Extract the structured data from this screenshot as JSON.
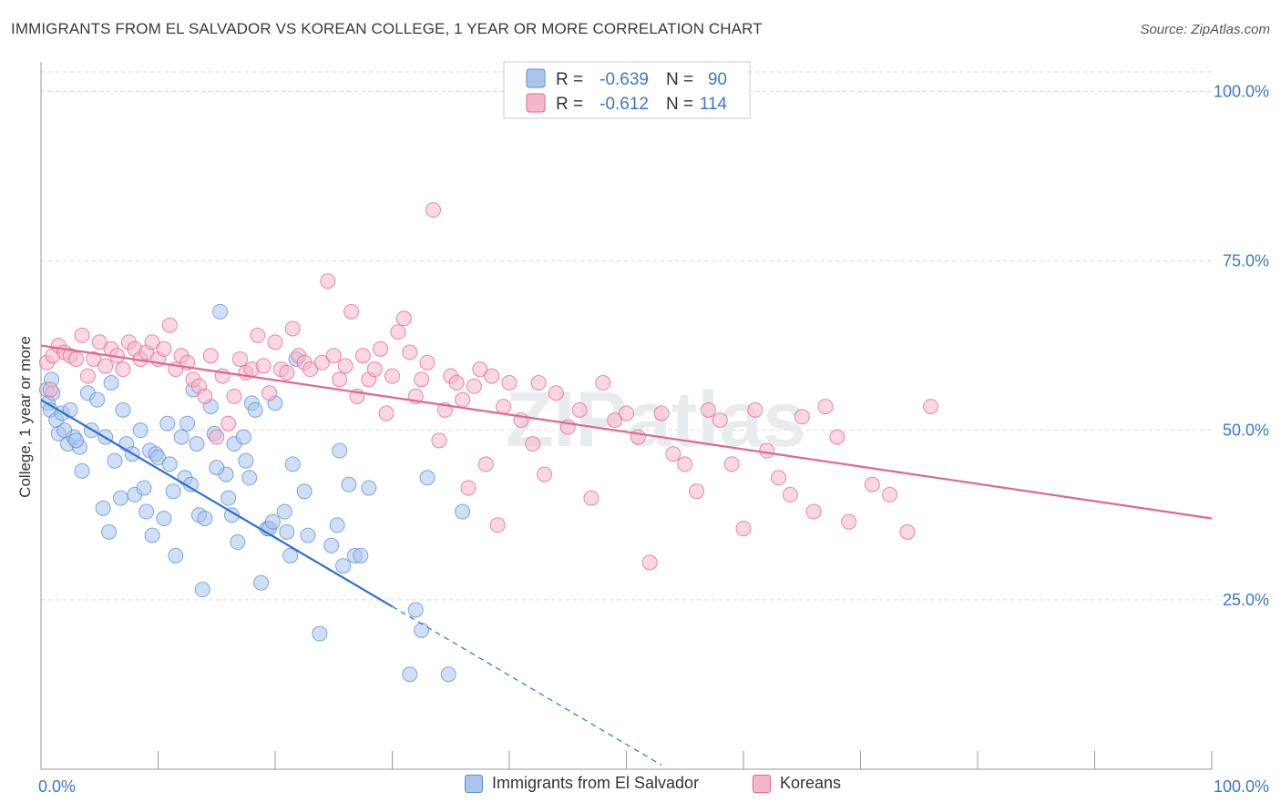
{
  "header": {
    "title": "IMMIGRANTS FROM EL SALVADOR VS KOREAN COLLEGE, 1 YEAR OR MORE CORRELATION CHART",
    "source": "Source: ZipAtlas.com"
  },
  "watermark": "ZIPatlas",
  "chart_data": {
    "type": "scatter",
    "ylabel": "College, 1 year or more",
    "xlim": [
      0,
      100
    ],
    "ylim": [
      0,
      103
    ],
    "x_tick_labels": [
      "0.0%",
      "100.0%"
    ],
    "y_ticks": [
      25,
      50,
      75,
      100
    ],
    "y_tick_labels": [
      "25.0%",
      "50.0%",
      "75.0%",
      "100.0%"
    ],
    "grid": true,
    "legend": {
      "placement": "top-center",
      "entries": [
        {
          "r_label": "R =",
          "r_value": "-0.639",
          "n_label": "N =",
          "n_value": "90"
        },
        {
          "r_label": "R =",
          "r_value": "-0.612",
          "n_label": "N =",
          "n_value": "114"
        }
      ]
    },
    "series": [
      {
        "name": "Immigrants from El Salvador",
        "color": "#5b8ed6",
        "fill": "#a9c5ee",
        "trend": {
          "x0": 0,
          "y0": 54.5,
          "x1": 30,
          "y1": 24,
          "dash_to_x": 53
        },
        "points": [
          [
            0.5,
            56
          ],
          [
            0.6,
            54
          ],
          [
            0.8,
            53
          ],
          [
            1,
            55.5
          ],
          [
            1.3,
            51.5
          ],
          [
            1.5,
            49.5
          ],
          [
            1.8,
            52.5
          ],
          [
            2.3,
            48
          ],
          [
            2.5,
            53
          ],
          [
            2.8,
            49
          ],
          [
            3.3,
            47.5
          ],
          [
            3.5,
            44
          ],
          [
            4,
            55.5
          ],
          [
            4.3,
            50
          ],
          [
            4.8,
            54.5
          ],
          [
            5.3,
            38.5
          ],
          [
            5.5,
            49
          ],
          [
            5.8,
            35
          ],
          [
            6.3,
            45.5
          ],
          [
            6.8,
            40
          ],
          [
            7,
            53
          ],
          [
            7.3,
            48
          ],
          [
            7.8,
            46.5
          ],
          [
            8,
            40.5
          ],
          [
            8.5,
            50
          ],
          [
            9.3,
            47
          ],
          [
            9.5,
            34.5
          ],
          [
            9.8,
            46.5
          ],
          [
            10,
            46
          ],
          [
            10.5,
            37
          ],
          [
            10.8,
            51
          ],
          [
            11,
            45
          ],
          [
            11.3,
            41
          ],
          [
            11.5,
            31.5
          ],
          [
            12,
            49
          ],
          [
            12.3,
            43
          ],
          [
            12.8,
            42
          ],
          [
            13,
            56
          ],
          [
            13.3,
            48
          ],
          [
            13.5,
            37.5
          ],
          [
            13.8,
            26.5
          ],
          [
            14,
            37
          ],
          [
            14.5,
            53.5
          ],
          [
            14.8,
            49.5
          ],
          [
            15.3,
            67.5
          ],
          [
            15.8,
            43.5
          ],
          [
            16,
            40
          ],
          [
            16.3,
            37.5
          ],
          [
            16.5,
            48
          ],
          [
            16.8,
            33.5
          ],
          [
            17.3,
            49
          ],
          [
            17.5,
            45.5
          ],
          [
            17.8,
            43
          ],
          [
            18,
            54
          ],
          [
            18.3,
            53
          ],
          [
            18.8,
            27.5
          ],
          [
            19.3,
            35.5
          ],
          [
            19.5,
            35.5
          ],
          [
            19.8,
            36.5
          ],
          [
            20,
            54
          ],
          [
            20.8,
            38
          ],
          [
            21,
            35
          ],
          [
            21.3,
            31.5
          ],
          [
            21.5,
            45
          ],
          [
            21.8,
            60.5
          ],
          [
            22.5,
            41
          ],
          [
            22.8,
            34.5
          ],
          [
            23.8,
            20
          ],
          [
            24.8,
            33
          ],
          [
            25.3,
            36
          ],
          [
            25.5,
            47
          ],
          [
            25.8,
            30
          ],
          [
            26.3,
            42
          ],
          [
            26.8,
            31.5
          ],
          [
            27.3,
            31.5
          ],
          [
            28,
            41.5
          ],
          [
            31.5,
            14
          ],
          [
            32,
            23.5
          ],
          [
            32.5,
            20.5
          ],
          [
            33,
            43
          ],
          [
            34.8,
            14
          ],
          [
            36,
            38
          ],
          [
            8.8,
            41.5
          ],
          [
            15,
            44.5
          ],
          [
            2,
            50
          ],
          [
            3,
            48.5
          ],
          [
            9,
            38
          ],
          [
            12.5,
            51
          ],
          [
            6,
            57
          ],
          [
            0.9,
            57.5
          ]
        ]
      },
      {
        "name": "Koreans",
        "color": "#e0678f",
        "fill": "#f6b6ca",
        "trend": {
          "x0": 0,
          "y0": 62.5,
          "x1": 100,
          "y1": 37
        },
        "points": [
          [
            0.5,
            60
          ],
          [
            0.8,
            56
          ],
          [
            1,
            61
          ],
          [
            1.5,
            62.5
          ],
          [
            2,
            61.5
          ],
          [
            2.5,
            61
          ],
          [
            3,
            60.5
          ],
          [
            3.5,
            64
          ],
          [
            4,
            58
          ],
          [
            4.5,
            60.5
          ],
          [
            5,
            63
          ],
          [
            5.5,
            59.5
          ],
          [
            6,
            62
          ],
          [
            6.5,
            61
          ],
          [
            7,
            59
          ],
          [
            7.5,
            63
          ],
          [
            8,
            62
          ],
          [
            8.5,
            60.5
          ],
          [
            9,
            61.5
          ],
          [
            9.5,
            63
          ],
          [
            10,
            60.5
          ],
          [
            10.5,
            62
          ],
          [
            11,
            65.5
          ],
          [
            11.5,
            59
          ],
          [
            12,
            61
          ],
          [
            12.5,
            60
          ],
          [
            13,
            57.5
          ],
          [
            13.5,
            56.5
          ],
          [
            14,
            55
          ],
          [
            14.5,
            61
          ],
          [
            15,
            49
          ],
          [
            15.5,
            58
          ],
          [
            16,
            51
          ],
          [
            16.5,
            55
          ],
          [
            17,
            60.5
          ],
          [
            17.5,
            58.5
          ],
          [
            18,
            59
          ],
          [
            18.5,
            64
          ],
          [
            19,
            59.5
          ],
          [
            19.5,
            55.5
          ],
          [
            20,
            63
          ],
          [
            20.5,
            59
          ],
          [
            21,
            58.5
          ],
          [
            21.5,
            65
          ],
          [
            22,
            61
          ],
          [
            22.5,
            60
          ],
          [
            23,
            59
          ],
          [
            24,
            60
          ],
          [
            24.5,
            72
          ],
          [
            25,
            61
          ],
          [
            25.5,
            57.5
          ],
          [
            26,
            59.5
          ],
          [
            26.5,
            67.5
          ],
          [
            27,
            55
          ],
          [
            27.5,
            61
          ],
          [
            28,
            57.5
          ],
          [
            28.5,
            59
          ],
          [
            29,
            62
          ],
          [
            29.5,
            52.5
          ],
          [
            30,
            58
          ],
          [
            30.5,
            64.5
          ],
          [
            31,
            66.5
          ],
          [
            31.5,
            61.5
          ],
          [
            32,
            55
          ],
          [
            32.5,
            57.5
          ],
          [
            33,
            60
          ],
          [
            33.5,
            82.5
          ],
          [
            34,
            48.5
          ],
          [
            34.5,
            53
          ],
          [
            35,
            58
          ],
          [
            35.5,
            57
          ],
          [
            36,
            54.5
          ],
          [
            36.5,
            41.5
          ],
          [
            37,
            56.5
          ],
          [
            37.5,
            59
          ],
          [
            38,
            45
          ],
          [
            38.5,
            58
          ],
          [
            39,
            36
          ],
          [
            39.5,
            53.5
          ],
          [
            40,
            57
          ],
          [
            41,
            51.5
          ],
          [
            42,
            48
          ],
          [
            42.5,
            57
          ],
          [
            43,
            43.5
          ],
          [
            44,
            55.5
          ],
          [
            45,
            50.5
          ],
          [
            46,
            53
          ],
          [
            47,
            40
          ],
          [
            48,
            57
          ],
          [
            49,
            51.5
          ],
          [
            50,
            52.5
          ],
          [
            51,
            49
          ],
          [
            52,
            30.5
          ],
          [
            53,
            52.5
          ],
          [
            54,
            46.5
          ],
          [
            55,
            45
          ],
          [
            56,
            41
          ],
          [
            57,
            53
          ],
          [
            58,
            51.5
          ],
          [
            59,
            45
          ],
          [
            60,
            35.5
          ],
          [
            61,
            53
          ],
          [
            62,
            47
          ],
          [
            63,
            43
          ],
          [
            64,
            40.5
          ],
          [
            65,
            52
          ],
          [
            66,
            38
          ],
          [
            67,
            53.5
          ],
          [
            68,
            49
          ],
          [
            69,
            36.5
          ],
          [
            71,
            42
          ],
          [
            72.5,
            40.5
          ],
          [
            74,
            35
          ],
          [
            76,
            53.5
          ]
        ]
      }
    ]
  }
}
